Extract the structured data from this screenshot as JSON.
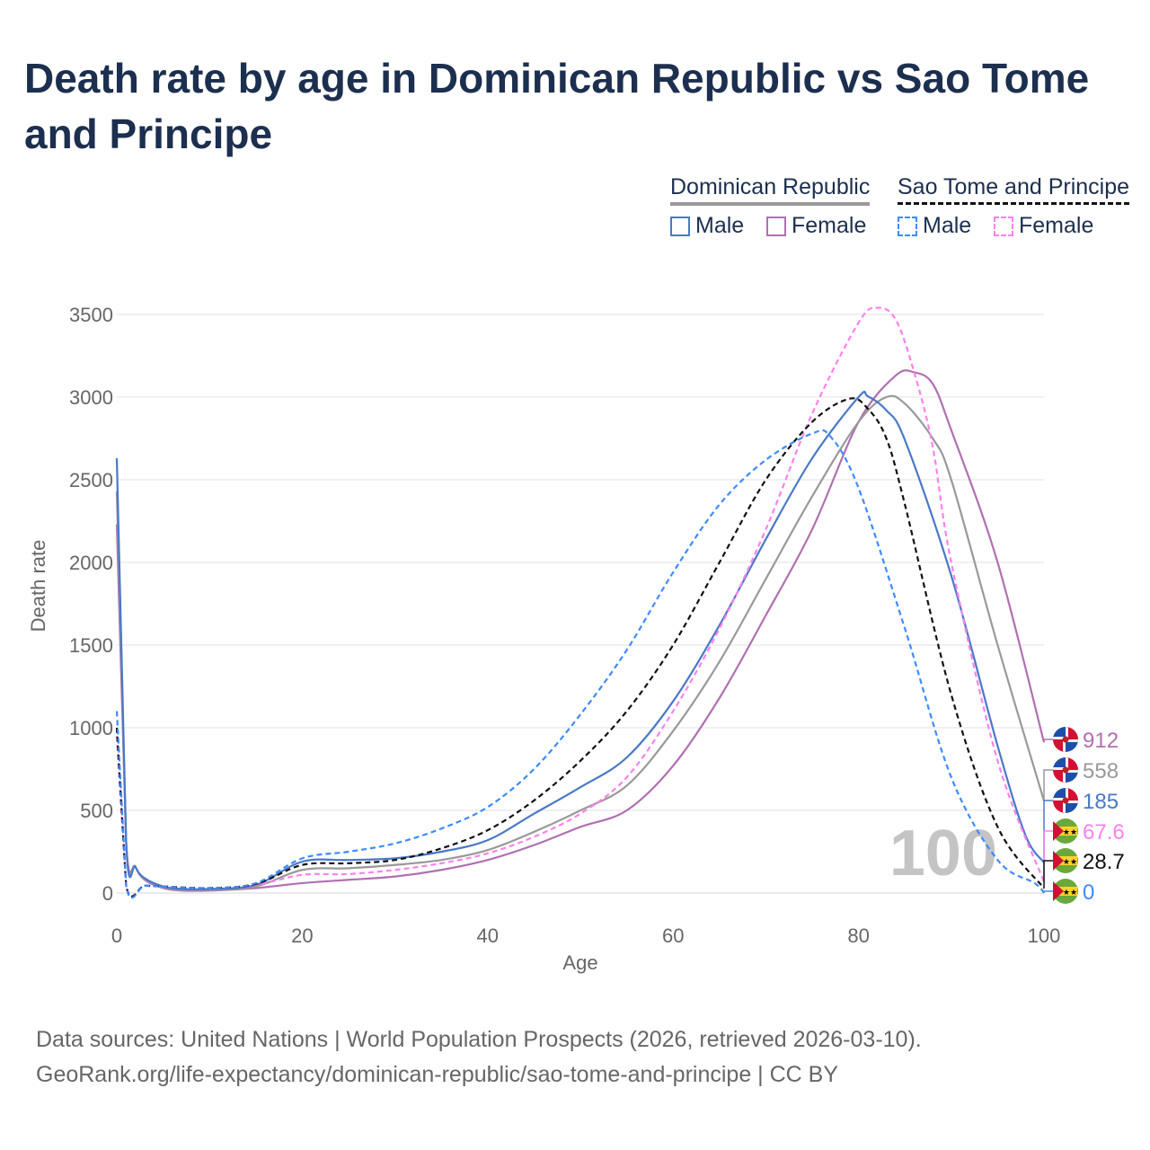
{
  "title": "Death rate by age in Dominican Republic vs Sao Tome and Principe",
  "legend": {
    "groups": [
      {
        "name": "Dominican Republic",
        "line": "solid",
        "color": "#999999",
        "items": [
          {
            "label": "Male",
            "color": "#4a78c8"
          },
          {
            "label": "Female",
            "color": "#b070b0"
          }
        ]
      },
      {
        "name": "Sao Tome and Principe",
        "line": "dashed",
        "color": "#111111",
        "items": [
          {
            "label": "Male",
            "color": "#3d8bff"
          },
          {
            "label": "Female",
            "color": "#ff80ee"
          }
        ]
      }
    ]
  },
  "year_watermark": "100",
  "source": [
    "Data sources: United Nations | World Population Prospects (2026, retrieved 2026-03-10).",
    "GeoRank.org/life-expectancy/dominican-republic/sao-tome-and-principe | CC BY"
  ],
  "chart_data": {
    "type": "line",
    "title": "Death rate by age in Dominican Republic vs Sao Tome and Principe",
    "xlabel": "Age",
    "ylabel": "Death rate",
    "xlim": [
      0,
      100
    ],
    "ylim": [
      0,
      3500
    ],
    "xticks": [
      0,
      20,
      40,
      60,
      80,
      100
    ],
    "yticks": [
      0,
      500,
      1000,
      1500,
      2000,
      2500,
      3000,
      3500
    ],
    "grid": true,
    "legend_position": "top-right",
    "series": [
      {
        "name": "Dominican Republic Female",
        "country": "DR",
        "dash": false,
        "color": "#b070b0",
        "end_label": "912",
        "points": [
          [
            0,
            2230
          ],
          [
            1,
            320
          ],
          [
            2,
            160
          ],
          [
            3,
            80
          ],
          [
            5,
            30
          ],
          [
            7,
            15
          ],
          [
            10,
            15
          ],
          [
            15,
            30
          ],
          [
            20,
            60
          ],
          [
            25,
            80
          ],
          [
            30,
            100
          ],
          [
            35,
            140
          ],
          [
            40,
            200
          ],
          [
            45,
            290
          ],
          [
            50,
            400
          ],
          [
            55,
            500
          ],
          [
            60,
            770
          ],
          [
            65,
            1180
          ],
          [
            70,
            1680
          ],
          [
            75,
            2200
          ],
          [
            80,
            2850
          ],
          [
            84,
            3130
          ],
          [
            86,
            3150
          ],
          [
            88,
            3080
          ],
          [
            90,
            2800
          ],
          [
            95,
            2000
          ],
          [
            100,
            912
          ]
        ]
      },
      {
        "name": "Dominican Republic Both",
        "country": "DR",
        "dash": false,
        "color": "#999999",
        "end_label": "558",
        "points": [
          [
            0,
            2430
          ],
          [
            1,
            320
          ],
          [
            2,
            160
          ],
          [
            3,
            85
          ],
          [
            5,
            35
          ],
          [
            7,
            20
          ],
          [
            10,
            20
          ],
          [
            15,
            40
          ],
          [
            20,
            140
          ],
          [
            25,
            150
          ],
          [
            30,
            170
          ],
          [
            35,
            200
          ],
          [
            40,
            260
          ],
          [
            45,
            370
          ],
          [
            50,
            500
          ],
          [
            55,
            650
          ],
          [
            60,
            980
          ],
          [
            65,
            1400
          ],
          [
            70,
            1900
          ],
          [
            75,
            2400
          ],
          [
            80,
            2850
          ],
          [
            83,
            3000
          ],
          [
            85,
            2960
          ],
          [
            88,
            2750
          ],
          [
            90,
            2500
          ],
          [
            95,
            1500
          ],
          [
            100,
            558
          ]
        ]
      },
      {
        "name": "Dominican Republic Male",
        "country": "DR",
        "dash": false,
        "color": "#4a78c8",
        "end_label": "185",
        "points": [
          [
            0,
            2630
          ],
          [
            1,
            320
          ],
          [
            2,
            160
          ],
          [
            3,
            90
          ],
          [
            5,
            40
          ],
          [
            7,
            25
          ],
          [
            10,
            25
          ],
          [
            15,
            50
          ],
          [
            20,
            190
          ],
          [
            25,
            200
          ],
          [
            30,
            210
          ],
          [
            35,
            250
          ],
          [
            40,
            320
          ],
          [
            45,
            480
          ],
          [
            50,
            640
          ],
          [
            55,
            820
          ],
          [
            60,
            1160
          ],
          [
            65,
            1620
          ],
          [
            70,
            2140
          ],
          [
            75,
            2630
          ],
          [
            80,
            3000
          ],
          [
            81,
            3005
          ],
          [
            83,
            2920
          ],
          [
            85,
            2740
          ],
          [
            90,
            1920
          ],
          [
            95,
            890
          ],
          [
            98,
            350
          ],
          [
            100,
            185
          ]
        ]
      },
      {
        "name": "Sao Tome and Principe Female",
        "country": "STP",
        "dash": true,
        "color": "#ff80ee",
        "end_label": "67.6",
        "points": [
          [
            0,
            950
          ],
          [
            1,
            50
          ],
          [
            3,
            45
          ],
          [
            5,
            40
          ],
          [
            10,
            30
          ],
          [
            15,
            50
          ],
          [
            20,
            110
          ],
          [
            25,
            115
          ],
          [
            30,
            140
          ],
          [
            35,
            180
          ],
          [
            40,
            240
          ],
          [
            45,
            340
          ],
          [
            50,
            480
          ],
          [
            55,
            700
          ],
          [
            60,
            1100
          ],
          [
            65,
            1600
          ],
          [
            70,
            2200
          ],
          [
            75,
            2900
          ],
          [
            80,
            3450
          ],
          [
            82,
            3540
          ],
          [
            84,
            3470
          ],
          [
            86,
            3150
          ],
          [
            88,
            2700
          ],
          [
            90,
            2000
          ],
          [
            95,
            800
          ],
          [
            100,
            67.6
          ]
        ]
      },
      {
        "name": "Sao Tome and Principe Both",
        "country": "STP",
        "dash": true,
        "color": "#111111",
        "end_label": "28.7",
        "points": [
          [
            0,
            1000
          ],
          [
            1,
            50
          ],
          [
            3,
            45
          ],
          [
            5,
            40
          ],
          [
            10,
            30
          ],
          [
            15,
            55
          ],
          [
            20,
            170
          ],
          [
            25,
            180
          ],
          [
            30,
            200
          ],
          [
            35,
            270
          ],
          [
            40,
            380
          ],
          [
            45,
            560
          ],
          [
            50,
            800
          ],
          [
            55,
            1100
          ],
          [
            60,
            1500
          ],
          [
            65,
            2000
          ],
          [
            70,
            2500
          ],
          [
            75,
            2850
          ],
          [
            79,
            2990
          ],
          [
            81,
            2930
          ],
          [
            83,
            2750
          ],
          [
            85,
            2350
          ],
          [
            90,
            1200
          ],
          [
            95,
            400
          ],
          [
            100,
            28.7
          ]
        ]
      },
      {
        "name": "Sao Tome and Principe Male",
        "country": "STP",
        "dash": true,
        "color": "#3d8bff",
        "end_label": "0",
        "points": [
          [
            0,
            1100
          ],
          [
            1,
            50
          ],
          [
            3,
            45
          ],
          [
            5,
            40
          ],
          [
            10,
            30
          ],
          [
            15,
            60
          ],
          [
            20,
            210
          ],
          [
            25,
            250
          ],
          [
            30,
            300
          ],
          [
            35,
            390
          ],
          [
            40,
            520
          ],
          [
            45,
            750
          ],
          [
            50,
            1080
          ],
          [
            55,
            1470
          ],
          [
            60,
            1940
          ],
          [
            65,
            2350
          ],
          [
            70,
            2620
          ],
          [
            75,
            2780
          ],
          [
            77,
            2760
          ],
          [
            80,
            2450
          ],
          [
            85,
            1600
          ],
          [
            90,
            700
          ],
          [
            95,
            200
          ],
          [
            99,
            60
          ],
          [
            100,
            0
          ]
        ]
      }
    ]
  }
}
